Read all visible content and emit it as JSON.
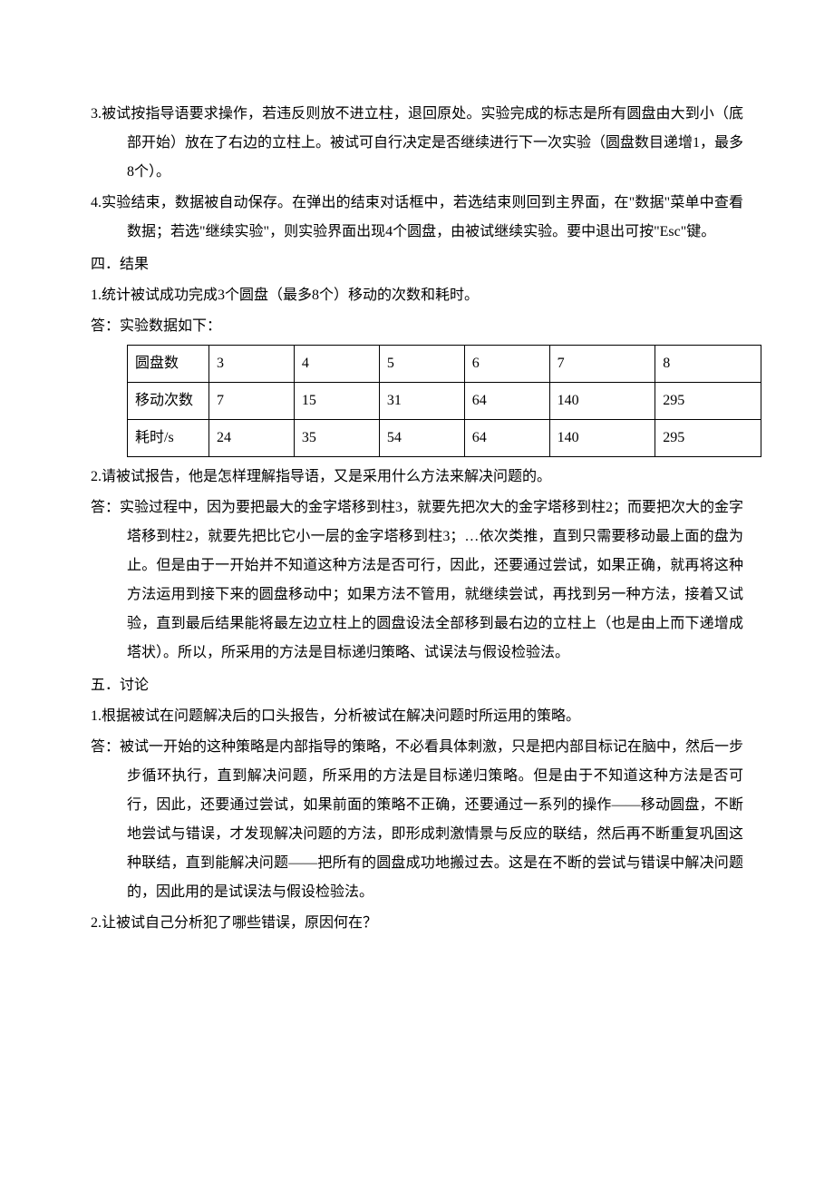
{
  "items": {
    "p3": "3.被试按指导语要求操作，若违反则放不进立柱，退回原处。实验完成的标志是所有圆盘由大到小（底部开始）放在了右边的立柱上。被试可自行决定是否继续进行下一次实验（圆盘数目递增1，最多8个）。",
    "p4": "4.实验结束，数据被自动保存。在弹出的结束对话框中，若选结束则回到主界面，在\"数据\"菜单中查看数据；若选\"继续实验\"，则实验界面出现4个圆盘，由被试继续实验。要中退出可按\"Esc\"键。"
  },
  "section4": {
    "heading": "四．结果",
    "q1": "1.统计被试成功完成3个圆盘（最多8个）移动的次数和耗时。",
    "a1_label": "答：实验数据如下：",
    "q2": "2.请被试报告，他是怎样理解指导语，又是采用什么方法来解决问题的。",
    "a2": "答：实验过程中，因为要把最大的金字塔移到柱3，就要先把次大的金字塔移到柱2；而要把次大的金字塔移到柱2，就要先把比它小一层的金字塔移到柱3；…依次类推，直到只需要移动最上面的盘为止。但是由于一开始并不知道这种方法是否可行，因此，还要通过尝试，如果正确，就再将这种方法运用到接下来的圆盘移动中；如果方法不管用，就继续尝试，再找到另一种方法，接着又试验，直到最后结果能将最左边立柱上的圆盘设法全部移到最右边的立柱上（也是由上而下递增成塔状）。所以，所采用的方法是目标递归策略、试误法与假设检验法。"
  },
  "table": {
    "rows": [
      {
        "label": "圆盘数",
        "c1": "3",
        "c2": "4",
        "c3": "5",
        "c4": "6",
        "c5": "7",
        "c6": "8"
      },
      {
        "label": "移动次数",
        "c1": "7",
        "c2": "15",
        "c3": "31",
        "c4": "64",
        "c5": "140",
        "c6": "295"
      },
      {
        "label": "耗时/s",
        "c1": "24",
        "c2": "35",
        "c3": "54",
        "c4": "64",
        "c5": "140",
        "c6": "295"
      }
    ]
  },
  "section5": {
    "heading": "五．讨论",
    "q1": "1.根据被试在问题解决后的口头报告，分析被试在解决问题时所运用的策略。",
    "a1": "答：被试一开始的这种策略是内部指导的策略，不必看具体刺激，只是把内部目标记在脑中，然后一步步循环执行，直到解决问题，所采用的方法是目标递归策略。但是由于不知道这种方法是否可行，因此，还要通过尝试，如果前面的策略不正确，还要通过一系列的操作——移动圆盘，不断地尝试与错误，才发现解决问题的方法，即形成刺激情景与反应的联结，然后再不断重复巩固这种联结，直到能解决问题——把所有的圆盘成功地搬过去。这是在不断的尝试与错误中解决问题的，因此用的是试误法与假设检验法。",
    "q2": "2.让被试自己分析犯了哪些错误，原因何在？"
  }
}
